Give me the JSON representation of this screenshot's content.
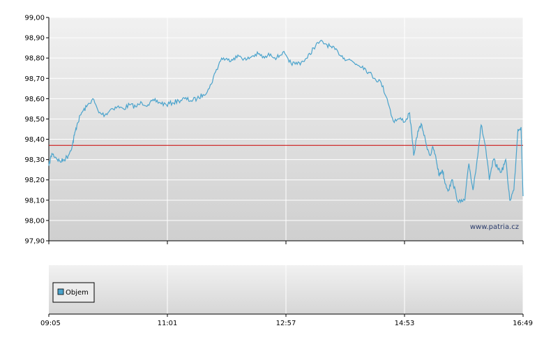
{
  "watermark": "www.patria.cz",
  "chart_data": [
    {
      "type": "line",
      "title": "",
      "xlabel": "",
      "ylabel": "",
      "ylim": [
        97.9,
        99.0
      ],
      "y_ticks": [
        "99,00",
        "98,90",
        "98,80",
        "98,70",
        "98,60",
        "98,50",
        "98,40",
        "98,30",
        "98,20",
        "98,10",
        "98,00",
        "97,90"
      ],
      "x_ticks": [
        "09:05",
        "11:01",
        "12:57",
        "14:53",
        "16:49"
      ],
      "grid": true,
      "reference_line": {
        "value": 98.37,
        "color": "#cc0000"
      },
      "series": [
        {
          "color": "#4aa3cc",
          "x": [
            "09:05",
            "09:08",
            "09:12",
            "09:16",
            "09:20",
            "09:24",
            "09:28",
            "09:30",
            "09:33",
            "09:37",
            "09:42",
            "09:48",
            "09:54",
            "10:00",
            "10:06",
            "10:12",
            "10:18",
            "10:24",
            "10:30",
            "10:36",
            "10:42",
            "10:48",
            "10:54",
            "11:00",
            "11:06",
            "11:12",
            "11:18",
            "11:24",
            "11:30",
            "11:36",
            "11:42",
            "11:48",
            "11:54",
            "12:00",
            "12:06",
            "12:12",
            "12:18",
            "12:24",
            "12:30",
            "12:36",
            "12:42",
            "12:48",
            "12:54",
            "13:00",
            "13:06",
            "13:12",
            "13:18",
            "13:24",
            "13:30",
            "13:36",
            "13:42",
            "13:48",
            "13:54",
            "14:00",
            "14:06",
            "14:12",
            "14:18",
            "14:24",
            "14:30",
            "14:36",
            "14:42",
            "14:48",
            "14:54",
            "14:58",
            "15:02",
            "15:06",
            "15:10",
            "15:14",
            "15:18",
            "15:21",
            "15:24",
            "15:27",
            "15:30",
            "15:33",
            "15:36",
            "15:40",
            "15:44",
            "15:48",
            "15:52",
            "15:56",
            "16:00",
            "16:04",
            "16:08",
            "16:12",
            "16:16",
            "16:20",
            "16:24",
            "16:28",
            "16:32",
            "16:36",
            "16:40",
            "16:44",
            "16:47",
            "16:49"
          ],
          "values": [
            98.27,
            98.33,
            98.31,
            98.29,
            98.3,
            98.32,
            98.37,
            98.42,
            98.48,
            98.53,
            98.56,
            98.6,
            98.53,
            98.52,
            98.55,
            98.56,
            98.55,
            98.57,
            98.56,
            98.58,
            98.57,
            98.59,
            98.58,
            98.57,
            98.58,
            98.59,
            98.6,
            98.59,
            98.6,
            98.62,
            98.65,
            98.73,
            98.8,
            98.79,
            98.8,
            98.81,
            98.79,
            98.81,
            98.82,
            98.8,
            98.82,
            98.8,
            98.83,
            98.78,
            98.77,
            98.78,
            98.8,
            98.85,
            98.88,
            98.87,
            98.85,
            98.83,
            98.8,
            98.79,
            98.77,
            98.76,
            98.73,
            98.7,
            98.68,
            98.6,
            98.49,
            98.5,
            98.49,
            98.53,
            98.32,
            98.44,
            98.47,
            98.38,
            98.32,
            98.36,
            98.3,
            98.22,
            98.25,
            98.18,
            98.15,
            98.2,
            98.11,
            98.09,
            98.1,
            98.28,
            98.15,
            98.3,
            98.47,
            98.37,
            98.2,
            98.3,
            98.26,
            98.24,
            98.3,
            98.1,
            98.15,
            98.45,
            98.46,
            98.12
          ]
        }
      ]
    },
    {
      "type": "bar",
      "title": "",
      "xlabel": "",
      "ylabel": "",
      "legend": "Objem",
      "legend_color": "#4aa3cc",
      "legend_position": "bottom-left",
      "x_ticks": [
        "09:05",
        "11:01",
        "12:57",
        "14:53",
        "16:49"
      ],
      "series": []
    }
  ]
}
